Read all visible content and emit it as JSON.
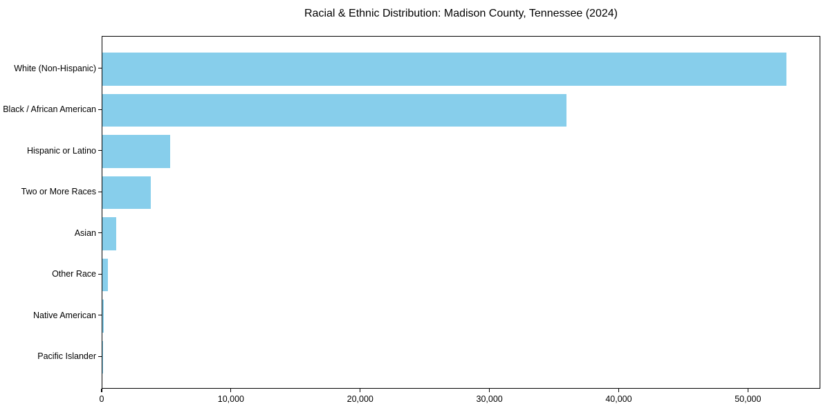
{
  "chart_data": {
    "type": "bar",
    "orientation": "horizontal",
    "title": "Racial & Ethnic Distribution: Madison County, Tennessee (2024)",
    "categories": [
      "White (Non-Hispanic)",
      "Black / African American",
      "Hispanic or Latino",
      "Two or More Races",
      "Asian",
      "Other Race",
      "Native American",
      "Pacific Islander"
    ],
    "values": [
      52900,
      35900,
      5250,
      3750,
      1050,
      420,
      90,
      30
    ],
    "xlabel": "",
    "ylabel": "",
    "xlim": [
      0,
      55600
    ],
    "xticks": [
      0,
      10000,
      20000,
      30000,
      40000,
      50000
    ],
    "xtick_labels": [
      "0",
      "10,000",
      "20,000",
      "30,000",
      "40,000",
      "50,000"
    ],
    "bar_color": "#87CEEB",
    "axis_color": "#000000",
    "background_color": "#ffffff",
    "grid": false,
    "legend": null
  }
}
